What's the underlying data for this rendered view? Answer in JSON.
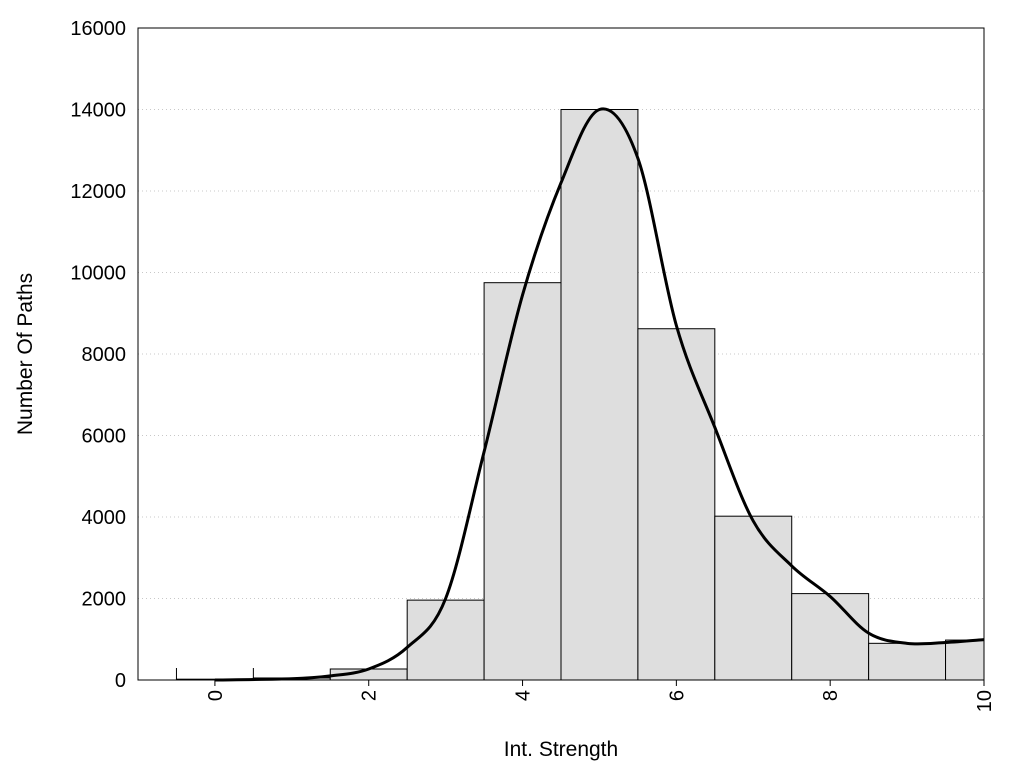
{
  "chart_data": {
    "type": "bar",
    "xlabel": "Int. Strength",
    "ylabel": "Number Of Paths",
    "xlim": [
      -1,
      10
    ],
    "ylim": [
      0,
      16000
    ],
    "x_ticks": [
      "0",
      "2",
      "4",
      "6",
      "8",
      "10"
    ],
    "y_ticks": [
      "0",
      "2000",
      "4000",
      "6000",
      "8000",
      "10000",
      "12000",
      "14000",
      "16000"
    ],
    "grid": "horizontal dotted",
    "histogram": {
      "bin_centers": [
        0,
        1,
        2,
        3,
        4,
        5,
        6,
        7,
        8,
        9,
        10
      ],
      "values": [
        20,
        50,
        270,
        1960,
        9750,
        14000,
        8620,
        4020,
        2120,
        900,
        980
      ]
    },
    "density_curve": {
      "x": [
        0,
        1,
        1.5,
        2,
        2.5,
        3,
        3.5,
        4,
        4.5,
        5,
        5.5,
        6,
        6.5,
        7,
        7.5,
        8,
        8.5,
        9,
        9.5,
        10
      ],
      "y": [
        0,
        30,
        100,
        270,
        800,
        2000,
        5600,
        9450,
        12200,
        14000,
        12800,
        8700,
        6200,
        3900,
        2800,
        2050,
        1150,
        900,
        920,
        990
      ]
    },
    "colors": {
      "bar_fill": "#dedede",
      "bar_stroke": "#000000",
      "curve": "#000000",
      "grid": "#c8c8c8"
    }
  }
}
